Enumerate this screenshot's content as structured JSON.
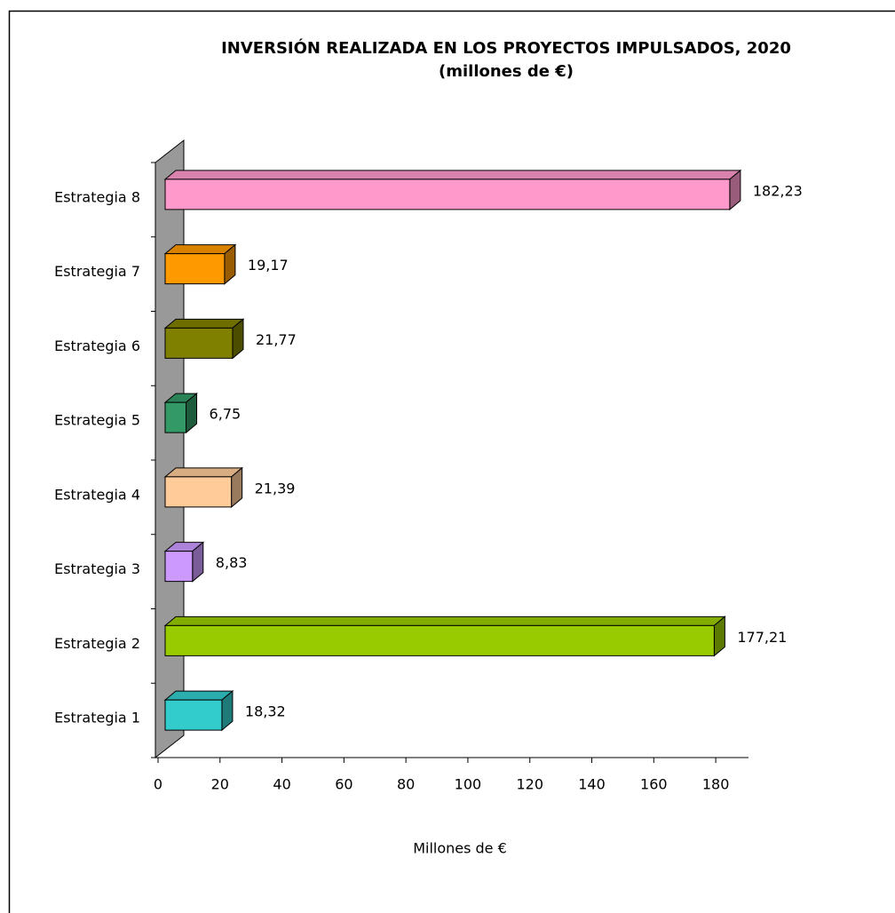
{
  "chart_data": {
    "type": "bar",
    "orientation": "horizontal",
    "title": "INVERSIÓN REALIZADA EN LOS PROYECTOS IMPULSADOS, 2020",
    "subtitle": "(millones de €)",
    "x_label": "Millones de €",
    "categories": [
      "Estrategia 1",
      "Estrategia 2",
      "Estrategia 3",
      "Estrategia 4",
      "Estrategia 5",
      "Estrategia 6",
      "Estrategia 7",
      "Estrategia 8"
    ],
    "values": [
      18.32,
      177.21,
      8.83,
      21.39,
      6.75,
      21.77,
      19.17,
      182.23
    ],
    "value_labels": [
      "18,32",
      "177,21",
      "8,83",
      "21,39",
      "6,75",
      "21,77",
      "19,17",
      "182,23"
    ],
    "colors": [
      "#33cccc",
      "#99cc00",
      "#cc99ff",
      "#ffcc99",
      "#339966",
      "#808000",
      "#ff9900",
      "#ff99cc"
    ],
    "xlim": [
      0,
      190
    ],
    "xticks": [
      0,
      20,
      40,
      60,
      80,
      100,
      120,
      140,
      160,
      180
    ]
  }
}
